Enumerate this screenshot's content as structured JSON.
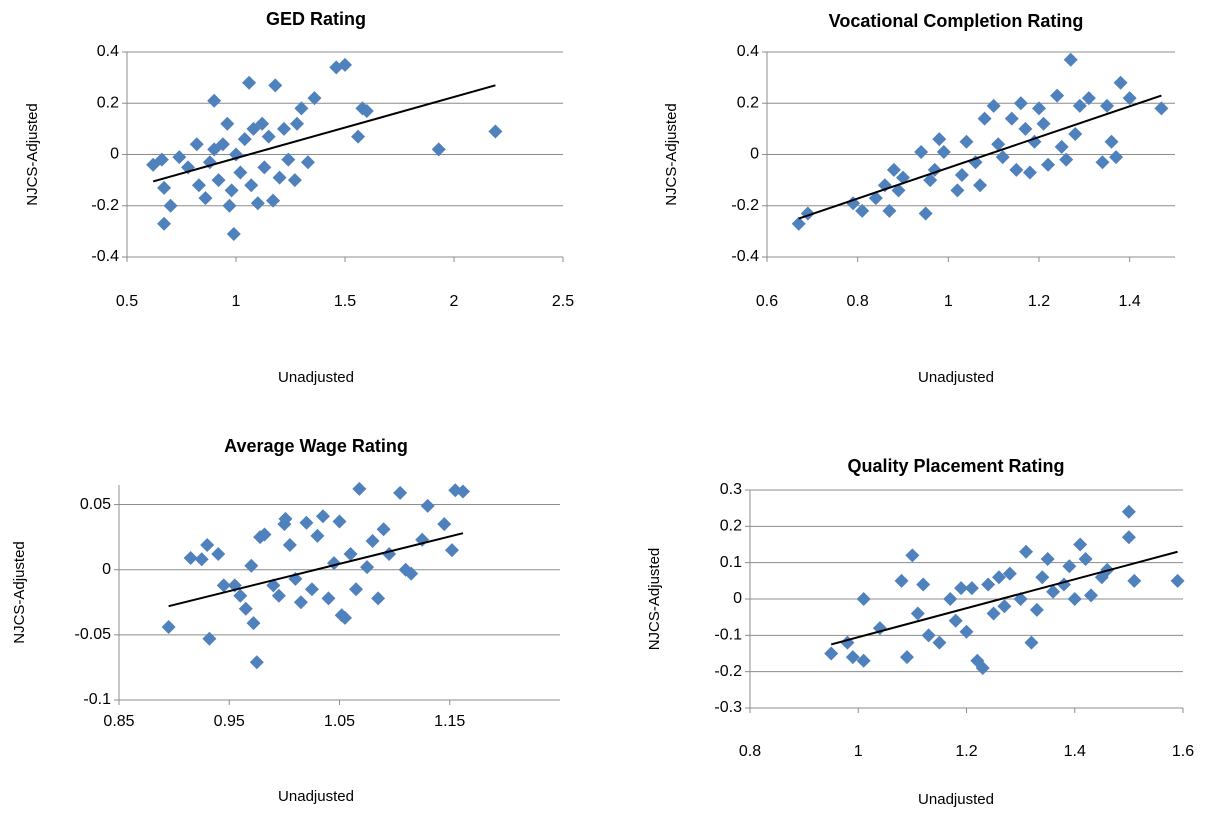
{
  "chart_data": [
    {
      "type": "scatter",
      "title": "GED Rating",
      "x_label": "Unadjusted",
      "y_label": "NJCS-Adjusted",
      "xlim": [
        0.5,
        2.5
      ],
      "xticks": [
        0.5,
        1,
        1.5,
        2,
        2.5
      ],
      "ylim": [
        -0.4,
        0.4
      ],
      "yticks": [
        -0.4,
        -0.2,
        0,
        0.2,
        0.4
      ],
      "grid": true,
      "color": "#4f81bd",
      "x": [
        0.62,
        0.66,
        0.67,
        0.67,
        0.7,
        0.74,
        0.78,
        0.82,
        0.83,
        0.86,
        0.88,
        0.9,
        0.9,
        0.92,
        0.94,
        0.96,
        0.97,
        0.98,
        0.99,
        1.0,
        1.02,
        1.04,
        1.06,
        1.07,
        1.08,
        1.1,
        1.12,
        1.13,
        1.15,
        1.17,
        1.18,
        1.2,
        1.22,
        1.24,
        1.27,
        1.28,
        1.3,
        1.33,
        1.36,
        1.46,
        1.5,
        1.56,
        1.58,
        1.6,
        1.93,
        2.19
      ],
      "values": [
        -0.04,
        -0.02,
        -0.13,
        -0.27,
        -0.2,
        -0.01,
        -0.05,
        0.04,
        -0.12,
        -0.17,
        -0.03,
        0.21,
        0.02,
        -0.1,
        0.04,
        0.12,
        -0.2,
        -0.14,
        -0.31,
        0.0,
        -0.07,
        0.06,
        0.28,
        -0.12,
        0.1,
        -0.19,
        0.12,
        -0.05,
        0.07,
        -0.18,
        0.27,
        -0.09,
        0.1,
        -0.02,
        -0.1,
        0.12,
        0.18,
        -0.03,
        0.22,
        0.34,
        0.35,
        0.07,
        0.18,
        0.17,
        0.02,
        0.09
      ],
      "trendline": {
        "x": [
          0.62,
          2.19
        ],
        "y": [
          -0.105,
          0.27
        ]
      }
    },
    {
      "type": "scatter",
      "title": "Vocational Completion Rating",
      "x_label": "Unadjusted",
      "y_label": "NJCS-Adjusted",
      "xlim": [
        0.6,
        1.5
      ],
      "xticks": [
        0.6,
        0.8,
        1,
        1.2,
        1.4
      ],
      "ylim": [
        -0.4,
        0.4
      ],
      "yticks": [
        -0.4,
        -0.2,
        0,
        0.2,
        0.4
      ],
      "grid": true,
      "color": "#4f81bd",
      "x": [
        0.67,
        0.69,
        0.79,
        0.81,
        0.84,
        0.86,
        0.87,
        0.88,
        0.89,
        0.9,
        0.94,
        0.95,
        0.96,
        0.97,
        0.98,
        0.99,
        1.02,
        1.03,
        1.04,
        1.06,
        1.07,
        1.08,
        1.1,
        1.11,
        1.12,
        1.14,
        1.15,
        1.16,
        1.17,
        1.18,
        1.19,
        1.2,
        1.21,
        1.22,
        1.24,
        1.25,
        1.26,
        1.27,
        1.28,
        1.29,
        1.31,
        1.34,
        1.35,
        1.36,
        1.37,
        1.38,
        1.4,
        1.47
      ],
      "values": [
        -0.27,
        -0.23,
        -0.19,
        -0.22,
        -0.17,
        -0.12,
        -0.22,
        -0.06,
        -0.14,
        -0.09,
        0.01,
        -0.23,
        -0.1,
        -0.06,
        0.06,
        0.01,
        -0.14,
        -0.08,
        0.05,
        -0.03,
        -0.12,
        0.14,
        0.19,
        0.04,
        -0.01,
        0.14,
        -0.06,
        0.2,
        0.1,
        -0.07,
        0.05,
        0.18,
        0.12,
        -0.04,
        0.23,
        0.03,
        -0.02,
        0.37,
        0.08,
        0.19,
        0.22,
        -0.03,
        0.19,
        0.05,
        -0.01,
        0.28,
        0.22,
        0.18
      ],
      "trendline": {
        "x": [
          0.67,
          1.47
        ],
        "y": [
          -0.25,
          0.23
        ]
      }
    },
    {
      "type": "scatter",
      "title": "Average Wage Rating",
      "x_label": "Unadjusted",
      "y_label": "NJCS-Adjusted",
      "xlim": [
        0.85,
        1.25
      ],
      "xticks": [
        0.85,
        0.95,
        1.05,
        1.15
      ],
      "ylim": [
        -0.1,
        0.065
      ],
      "yticks": [
        -0.1,
        -0.05,
        0,
        0.05
      ],
      "grid": true,
      "color": "#4f81bd",
      "x": [
        0.895,
        0.915,
        0.925,
        0.93,
        0.932,
        0.94,
        0.945,
        0.955,
        0.96,
        0.965,
        0.97,
        0.972,
        0.975,
        0.978,
        0.982,
        0.99,
        0.995,
        1.0,
        1.001,
        1.005,
        1.01,
        1.015,
        1.02,
        1.025,
        1.03,
        1.035,
        1.04,
        1.045,
        1.05,
        1.052,
        1.055,
        1.06,
        1.065,
        1.068,
        1.075,
        1.08,
        1.085,
        1.09,
        1.095,
        1.105,
        1.11,
        1.115,
        1.125,
        1.13,
        1.145,
        1.152,
        1.155,
        1.162
      ],
      "values": [
        -0.044,
        0.009,
        0.008,
        0.019,
        -0.053,
        0.012,
        -0.012,
        -0.012,
        -0.02,
        -0.03,
        0.003,
        -0.041,
        -0.071,
        0.025,
        0.027,
        -0.012,
        -0.02,
        0.035,
        0.039,
        0.019,
        -0.007,
        -0.025,
        0.036,
        -0.015,
        0.026,
        0.041,
        -0.022,
        0.005,
        0.037,
        -0.035,
        -0.037,
        0.012,
        -0.015,
        0.062,
        0.002,
        0.022,
        -0.022,
        0.031,
        0.012,
        0.059,
        0.0,
        -0.003,
        0.023,
        0.049,
        0.035,
        0.015,
        0.061,
        0.06
      ],
      "trendline": {
        "x": [
          0.895,
          1.162
        ],
        "y": [
          -0.028,
          0.028
        ]
      }
    },
    {
      "type": "scatter",
      "title": "Quality Placement Rating",
      "x_label": "Unadjusted",
      "y_label": "NJCS-Adjusted",
      "xlim": [
        0.8,
        1.6
      ],
      "xticks": [
        0.8,
        1,
        1.2,
        1.4,
        1.6
      ],
      "ylim": [
        -0.3,
        0.3
      ],
      "yticks": [
        -0.3,
        -0.2,
        -0.1,
        0,
        0.1,
        0.2,
        0.3
      ],
      "grid": true,
      "color": "#4f81bd",
      "x": [
        0.95,
        0.98,
        0.99,
        1.01,
        1.01,
        1.04,
        1.08,
        1.09,
        1.1,
        1.11,
        1.12,
        1.13,
        1.15,
        1.17,
        1.18,
        1.19,
        1.2,
        1.21,
        1.22,
        1.23,
        1.24,
        1.25,
        1.26,
        1.27,
        1.28,
        1.3,
        1.31,
        1.32,
        1.33,
        1.34,
        1.35,
        1.36,
        1.38,
        1.39,
        1.4,
        1.41,
        1.42,
        1.43,
        1.45,
        1.46,
        1.5,
        1.5,
        1.51,
        1.59
      ],
      "values": [
        -0.15,
        -0.12,
        -0.16,
        -0.17,
        0.0,
        -0.08,
        0.05,
        -0.16,
        0.12,
        -0.04,
        0.04,
        -0.1,
        -0.12,
        0.0,
        -0.06,
        0.03,
        -0.09,
        0.03,
        -0.17,
        -0.19,
        0.04,
        -0.04,
        0.06,
        -0.02,
        0.07,
        0.0,
        0.13,
        -0.12,
        -0.03,
        0.06,
        0.11,
        0.02,
        0.04,
        0.09,
        0.0,
        0.15,
        0.11,
        0.01,
        0.06,
        0.08,
        0.17,
        0.24,
        0.05,
        0.05
      ],
      "trendline": {
        "x": [
          0.95,
          1.59
        ],
        "y": [
          -0.125,
          0.13
        ]
      }
    }
  ]
}
